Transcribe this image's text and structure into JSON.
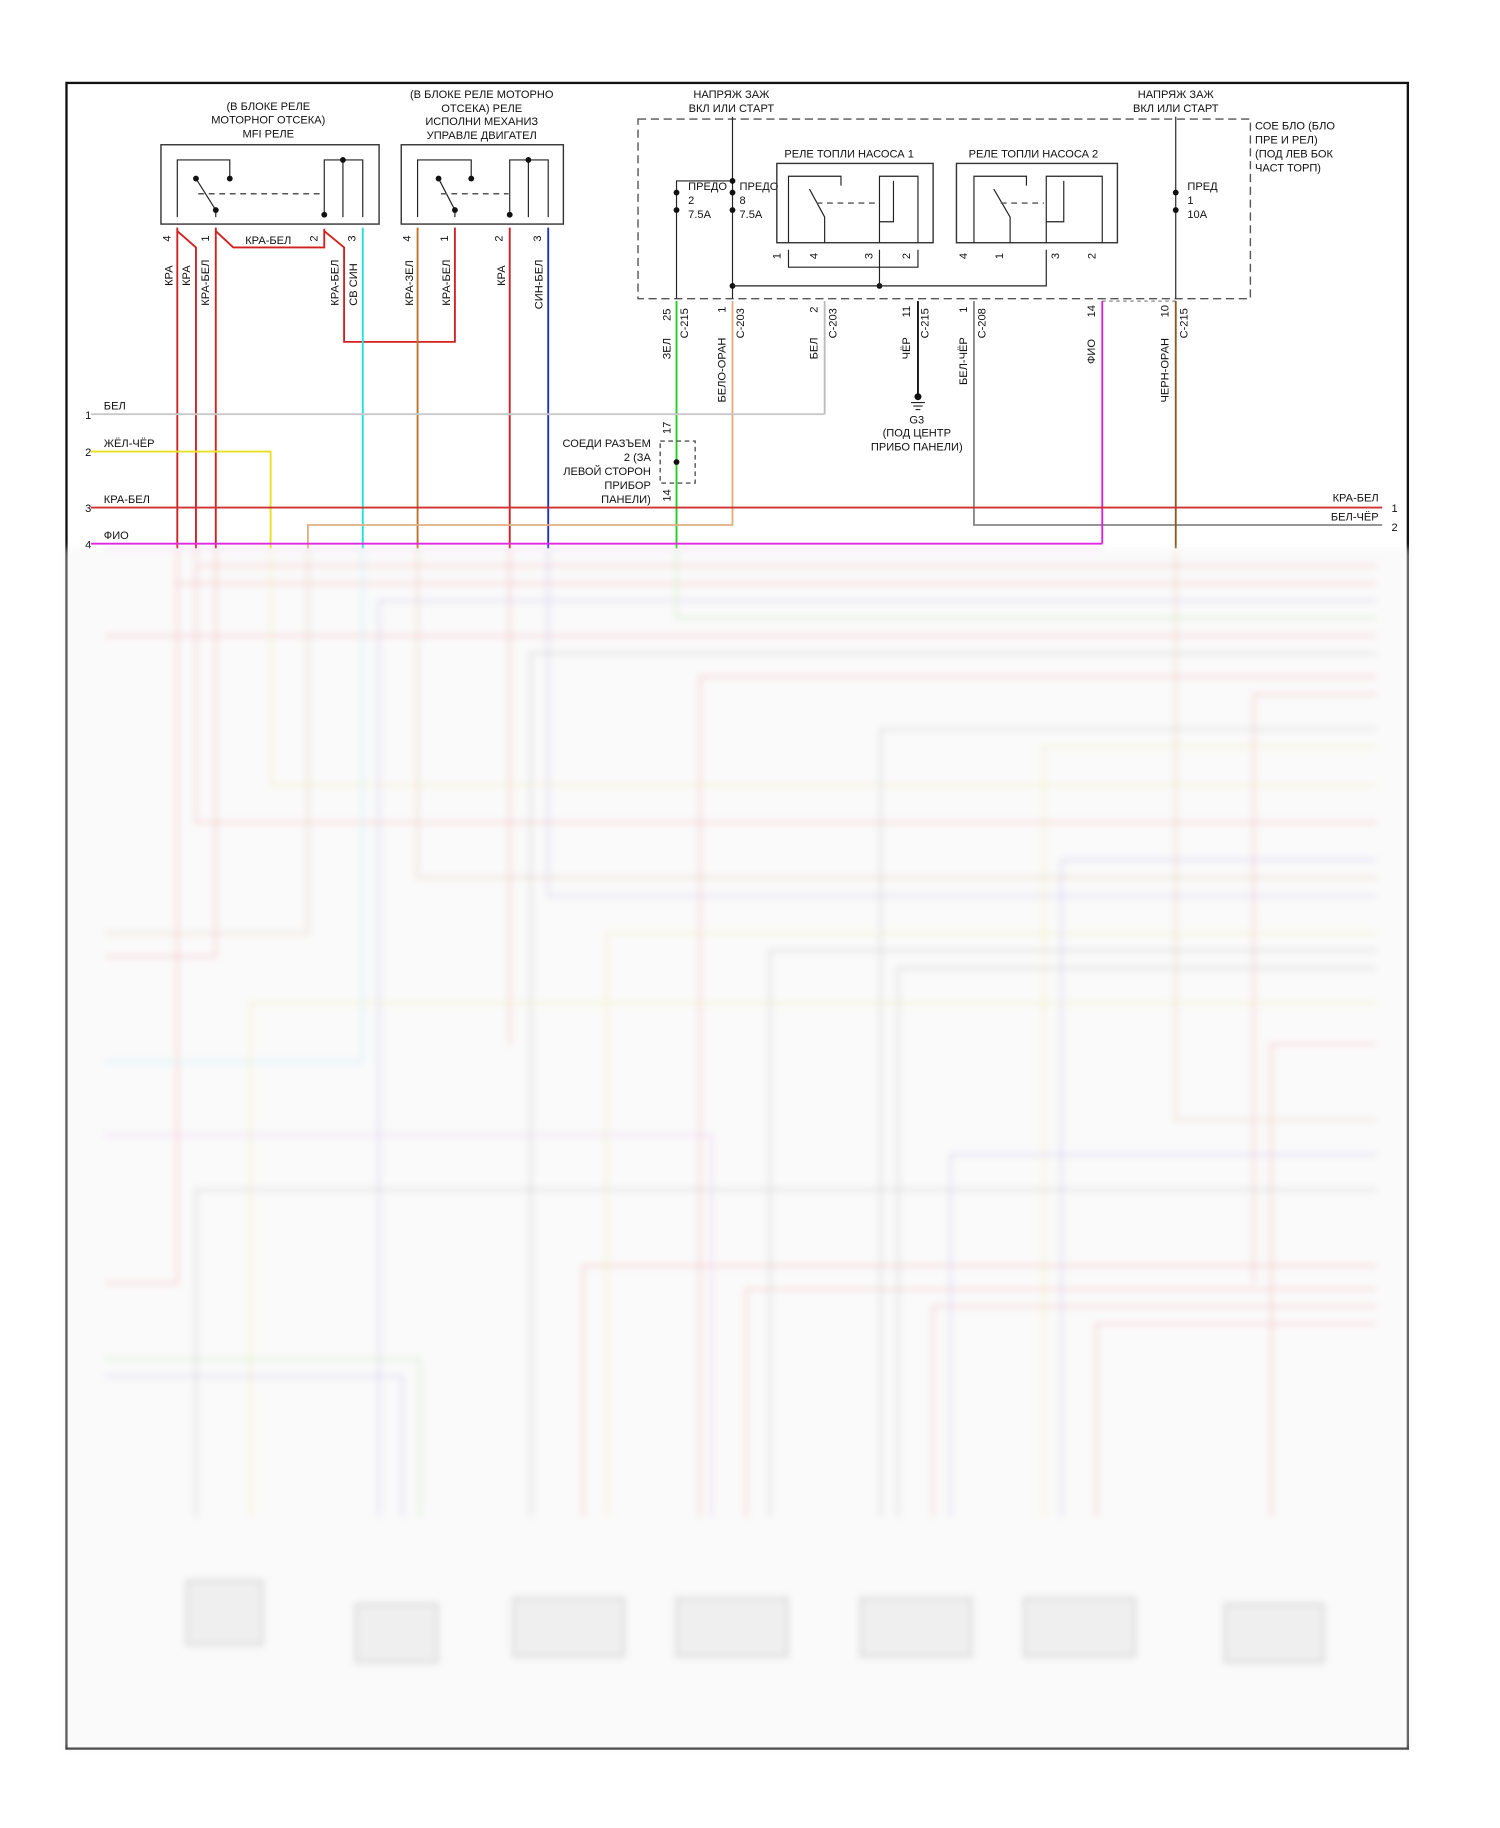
{
  "mfi_relay": {
    "label": [
      "(В БЛОКЕ РЕЛЕ",
      "МОТОРНОГ ОТСЕКА)",
      "MFI РЕЛЕ"
    ],
    "pins": [
      "4",
      "1",
      "2",
      "3"
    ],
    "jumper_label": "КРА-БЕЛ"
  },
  "engine_relay": {
    "label": [
      "(В БЛОКЕ РЕЛЕ МОТОРНО",
      "ОТСЕКА) РЕЛЕ",
      "ИСПОЛНИ МЕХАНИЗ",
      "УПРАВЛЕ ДВИГАТЕЛ"
    ],
    "pins": [
      "4",
      "1",
      "2",
      "3"
    ]
  },
  "left_wires": [
    "КРА",
    "КРА",
    "КРА-БЕЛ",
    "КРА-БЕЛ",
    "СВ СИН",
    "КРА-ЗЕЛ",
    "КРА-БЕЛ",
    "КРА",
    "СИН-БЕЛ"
  ],
  "ignition_1": [
    "НАПРЯЖ ЗАЖ",
    "ВКЛ ИЛИ СТАРТ"
  ],
  "ignition_2": [
    "НАПРЯЖ ЗАЖ",
    "ВКЛ ИЛИ СТАРТ"
  ],
  "junction_block": [
    "СОЕ БЛО (БЛО",
    "ПРЕ И РЕЛ)",
    "(ПОД ЛЕВ БОК",
    "ЧАСТ ТОРП)"
  ],
  "fuses": [
    {
      "name": "ПРЕДО",
      "num": "2",
      "rating": "7.5A"
    },
    {
      "name": "ПРЕДО",
      "num": "8",
      "rating": "7.5A"
    },
    {
      "name": "ПРЕД",
      "num": "1",
      "rating": "10A"
    }
  ],
  "pump_relay_1": {
    "label": "РЕЛЕ ТОПЛИ НАСОСА 1",
    "pins": [
      "1",
      "4",
      "3",
      "2"
    ]
  },
  "pump_relay_2": {
    "label": "РЕЛЕ ТОПЛИ НАСОСА 2",
    "pins": [
      "4",
      "1",
      "3",
      "2"
    ]
  },
  "connectors": [
    {
      "pin": "25",
      "conn": "C-215",
      "wire": "ЗЕЛ",
      "color": "#22cc22"
    },
    {
      "pin": "1",
      "conn": "C-203",
      "wire": "БЕЛО-ОРАН",
      "color": "#e0b080"
    },
    {
      "pin": "2",
      "conn": "C-203",
      "wire": "БЕЛ",
      "color": "#bbbbbb"
    },
    {
      "pin": "11",
      "conn": "C-215",
      "wire": "ЧЁР",
      "color": "#111111"
    },
    {
      "pin": "1",
      "conn": "C-208",
      "wire": "БЕЛ-ЧЁР",
      "color": "#888888"
    },
    {
      "pin": "14",
      "conn": "",
      "wire": "ФИО",
      "color": "#e020e0"
    },
    {
      "pin": "10",
      "conn": "C-215",
      "wire": "ЧЕРН-ОРАН",
      "color": "#8a5a20"
    }
  ],
  "ground": [
    "G3",
    "(ПОД ЦЕНТР",
    "ПРИБО ПАНЕЛИ)"
  ],
  "inline_connector": {
    "label": [
      "СОЕДИ РАЗЪЕМ",
      "2 (ЗА",
      "ЛЕВОЙ СТОРОН",
      "ПРИБОР",
      "ПАНЕЛИ)"
    ],
    "pin_top": "17",
    "pin_bottom": "14"
  },
  "left_buses": [
    {
      "num": "1",
      "label": "БЕЛ",
      "color": "#c8c8c8"
    },
    {
      "num": "2",
      "label": "ЖЁЛ-ЧЁР",
      "color": "#e8e020"
    },
    {
      "num": "3",
      "label": "КРА-БЕЛ",
      "color": "#d03030"
    },
    {
      "num": "4",
      "label": "ФИО",
      "color": "#e020e0"
    }
  ],
  "right_buses": [
    {
      "num": "1",
      "label": "КРА-БЕЛ"
    },
    {
      "num": "2",
      "label": "БЕЛ-ЧЁР"
    }
  ]
}
